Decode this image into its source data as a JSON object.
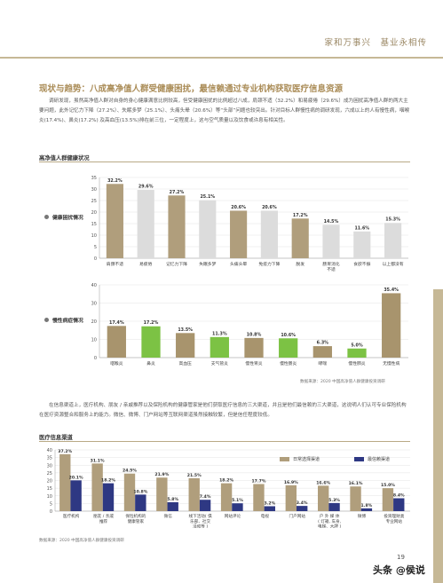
{
  "header": {
    "text": "家和万事兴　基业永相传"
  },
  "section_title": "现状与趋势：八成高净值人群受健康困扰，最信赖通过专业机构获取医疗信息资源",
  "paragraph1": "调研发现，虽然高净值人群对自身的身心健康满意比例较高，但受健康困扰的比例超过八成，肩颈不适（32.2%）和易疲倦（29.6%）成为困扰高净值人群的两大主要问题，此外记忆力下降（27.2%）、失眠多梦（25.1%）、头痛头晕（20.6%）等“头部”问题也较突出。针对目标人群慢性病的调研发现，六成以上的人有慢性病，咽喉炎(17.4%)、鼻炎(17.2%) 及高血压(13.5%)排在前三位，一定程度上，这与空气质量以及饮食或许息有相关性。",
  "paragraph2": "在信息渠道上，医疗机构、朋友 / 亲戚推荐以及保险机构的健康管家是他们获取医疗信息的三大渠道，并且是他们最信赖的三大渠道，这说明人们认可专业保险机构在医疗资源整合和服务上的能力。微信、微博、门户网站等互联网渠道虽然接触较繁，但是信任程度较低。",
  "subsection1": "高净值人群健康状况",
  "subsection2": "医疗信息渠道",
  "labels": {
    "health": "健康困扰情况",
    "chronic": "慢性病症情况"
  },
  "source1": "数据来源：2020 中国高净值人群健康投资调研",
  "source2": "数据来源：2020 中国高净值人群健康投资调研",
  "page_number": "19",
  "watermark": "头条 @侯说",
  "colors": {
    "tan": "#b09e7c",
    "grey": "#dcdcdc",
    "green": "#7cc244",
    "dark_tan": "#a8946d",
    "blue": "#2e3883",
    "accent": "#aa8c57"
  },
  "chart_data": [
    {
      "type": "bar",
      "categories": [
        "肩颈不适",
        "易疲倦",
        "记忆力下降",
        "失眠多梦",
        "头痛头晕",
        "免疫力下降",
        "脱发",
        "肠胃消化不适",
        "食欲不振",
        "以上都没有"
      ],
      "values": [
        32.2,
        29.6,
        27.2,
        25.1,
        20.6,
        20.6,
        17.2,
        14.5,
        11.6,
        15.3
      ],
      "value_labels": [
        "32.2%",
        "29.6%",
        "27.2%",
        "25.1%",
        "20.6%",
        "20.6%",
        "17.2%",
        "14.5%",
        "11.6%",
        "15.3%"
      ],
      "highlight": [
        true,
        false,
        true,
        false,
        true,
        false,
        true,
        false,
        false,
        false
      ],
      "yticks": [
        "0",
        "5",
        "10",
        "15",
        "20",
        "25",
        "30",
        "35"
      ],
      "ylim": [
        0,
        35
      ],
      "grid": true
    },
    {
      "type": "bar",
      "categories": [
        "咽喉炎",
        "鼻炎",
        "高血压",
        "支气管炎",
        "慢性胃炎",
        "慢性肠炎",
        "哮喘",
        "慢性肺炎",
        "无慢性病"
      ],
      "values": [
        17.4,
        17.2,
        13.5,
        11.3,
        10.8,
        10.6,
        6.3,
        5.0,
        35.4
      ],
      "value_labels": [
        "17.4%",
        "17.2%",
        "13.5%",
        "11.3%",
        "10.8%",
        "10.6%",
        "6.3%",
        "5.0%",
        "35.4%"
      ],
      "highlight": [
        false,
        true,
        false,
        true,
        false,
        true,
        false,
        true,
        false
      ],
      "yticks": [
        "0",
        "10",
        "20",
        "30",
        "40"
      ],
      "ylim": [
        0,
        40
      ],
      "grid": true
    },
    {
      "type": "bar",
      "categories": [
        "医疗机构",
        "朋友 / 亲戚推荐",
        "保险机构的健康管家",
        "微信",
        "线下活动( 俱乐部、社交活动等 )",
        "网站评论",
        "电视",
        "门户网站",
        "户外媒体( 灯箱、车身、电梯、大牌 )",
        "微博",
        "投资理财类专业网站"
      ],
      "series": [
        {
          "name": "日常选择渠道",
          "values": [
            37.2,
            31.1,
            24.5,
            21.9,
            21.5,
            18.2,
            17.7,
            16.9,
            16.6,
            16.1,
            15.0
          ],
          "labels": [
            "37.2%",
            "31.1%",
            "24.5%",
            "21.9%",
            "21.5%",
            "18.2%",
            "17.7%",
            "16.9%",
            "16.6%",
            "16.1%",
            "15.0%"
          ]
        },
        {
          "name": "最信赖渠道",
          "values": [
            20.1,
            18.2,
            10.8,
            5.8,
            7.4,
            5.1,
            3.2,
            3.4,
            5.3,
            1.8,
            8.4
          ],
          "labels": [
            "20.1%",
            "18.2%",
            "10.8%",
            "5.8%",
            "7.4%",
            "5.1%",
            "3.2%",
            "3.4%",
            "5.3%",
            "1.8%",
            "8.4%"
          ]
        }
      ],
      "yticks": [
        "0",
        "5",
        "10",
        "15",
        "20",
        "25",
        "30",
        "35",
        "40"
      ],
      "ylim": [
        0,
        40
      ],
      "grid": true,
      "legend": "top-right"
    }
  ]
}
